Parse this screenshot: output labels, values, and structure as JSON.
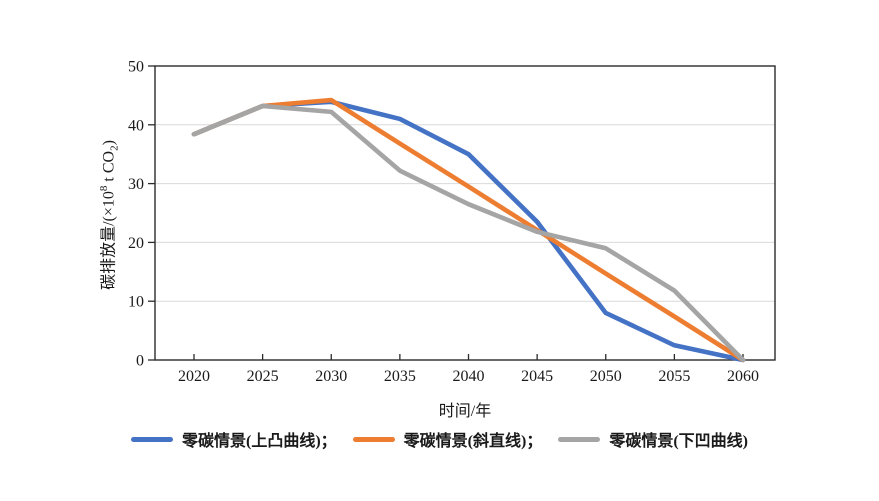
{
  "figure": {
    "background": "#ffffff",
    "axis_color": "#2b2b2b",
    "grid_color": "#d9d9d9",
    "text_color": "#1a1a1a"
  },
  "chart_data": {
    "type": "line",
    "title": "",
    "x": [
      2020,
      2025,
      2030,
      2035,
      2040,
      2045,
      2050,
      2055,
      2060
    ],
    "xlabel": "时间/年",
    "ylabel": "碳排放量/(×10⁸ t CO₂)",
    "ylabel_parts": {
      "prefix": "碳排放量/(×10",
      "sup": "8",
      "mid": " t CO",
      "sub": "2",
      "suffix": ")"
    },
    "xlim": [
      2020,
      2060
    ],
    "ylim": [
      0,
      50
    ],
    "yticks": [
      0,
      10,
      20,
      30,
      40,
      50
    ],
    "grid": "horizontal-only",
    "legend_position": "bottom",
    "series": [
      {
        "name": "零碳情景(上凸曲线)",
        "color": "#4472C4",
        "values": [
          38.4,
          43.2,
          43.9,
          41.0,
          35.0,
          23.5,
          8.0,
          2.5,
          0.0
        ]
      },
      {
        "name": "零碳情景(斜直线)",
        "color": "#ED7D31",
        "values": [
          38.4,
          43.2,
          44.2,
          36.8,
          29.5,
          22.1,
          14.7,
          7.4,
          0.0
        ]
      },
      {
        "name": "零碳情景(下凹曲线)",
        "color": "#A5A5A5",
        "values": [
          38.4,
          43.2,
          42.2,
          32.2,
          26.5,
          21.8,
          19.0,
          11.8,
          0.0
        ]
      }
    ],
    "legend_labels": [
      "零碳情景(上凸曲线)；",
      "零碳情景(斜直线)；",
      "零碳情景(下凹曲线)"
    ]
  }
}
